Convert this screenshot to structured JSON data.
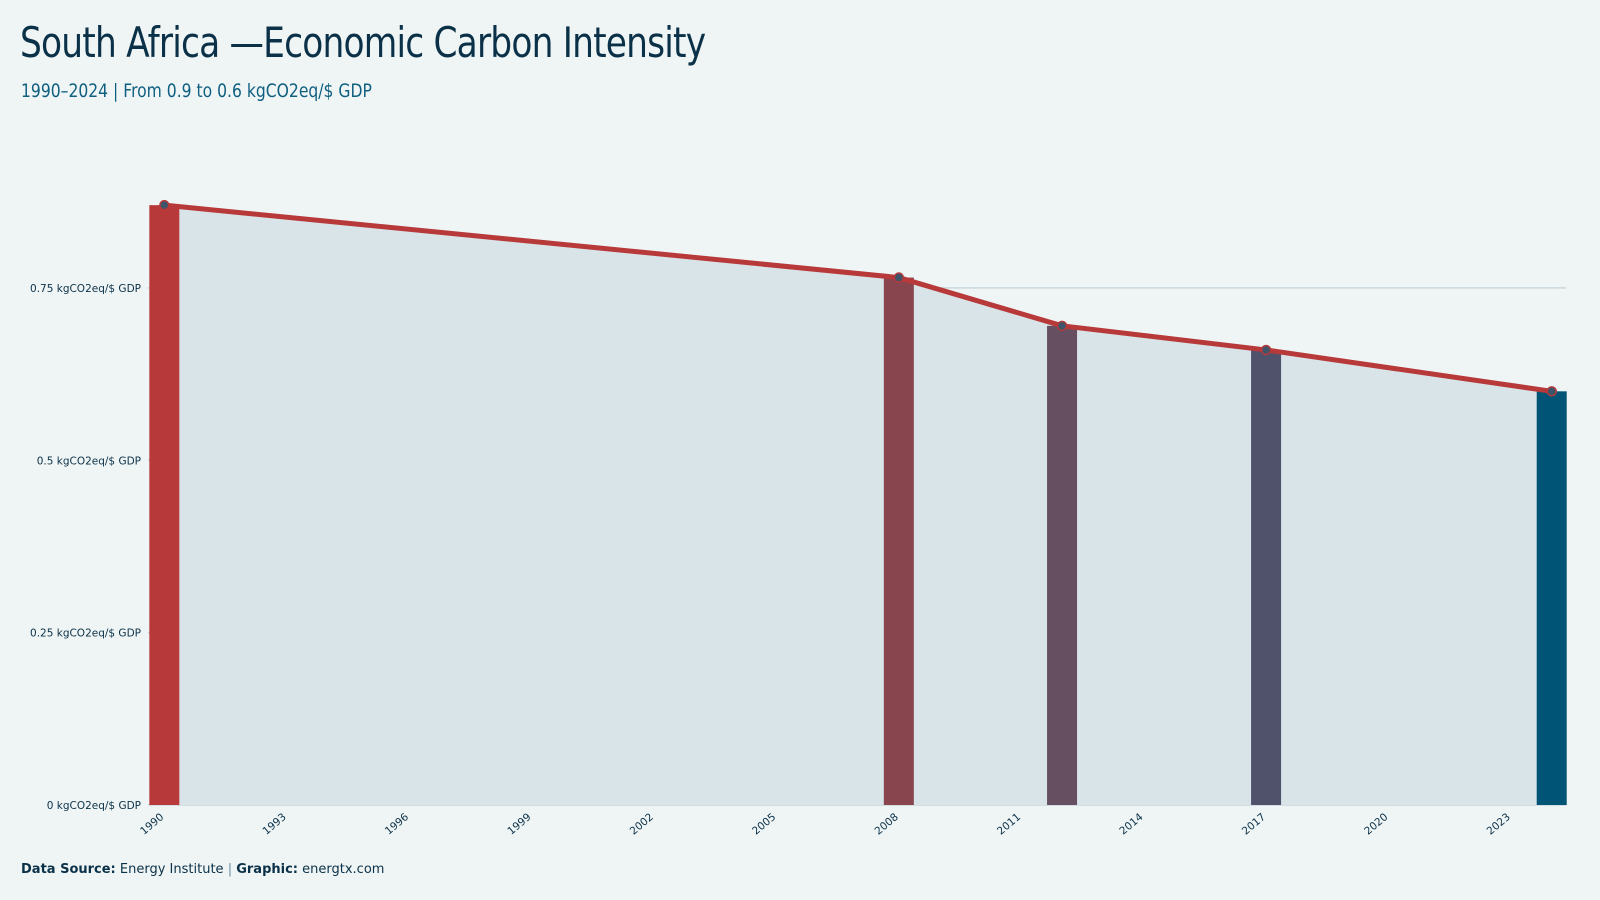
{
  "header": {
    "title": "South Africa —Economic Carbon Intensity",
    "subtitle": "1990–2024 | From 0.9 to 0.6 kgCO2eq/$ GDP"
  },
  "footer": {
    "source_label": "Data Source:",
    "source_value": "Energy Institute",
    "separator": "|",
    "graphic_label": "Graphic:",
    "graphic_value": "energtx.com"
  },
  "colors": {
    "background": "#eff5f5",
    "area_fill": "#d8e4e8",
    "line": "#b8393a",
    "grid": "#c9d7dc",
    "text": "#0b3148",
    "marker": "#3e5468"
  },
  "chart_data": {
    "type": "line",
    "x": [
      1990,
      2008,
      2012,
      2017,
      2024
    ],
    "values": [
      0.87,
      0.765,
      0.695,
      0.66,
      0.6
    ],
    "bars": [
      {
        "x": 1990,
        "value": 0.87,
        "color": "#b8393a"
      },
      {
        "x": 2008,
        "value": 0.765,
        "color": "#88454e"
      },
      {
        "x": 2012,
        "value": 0.695,
        "color": "#654f61"
      },
      {
        "x": 2017,
        "value": 0.66,
        "color": "#4f526a"
      },
      {
        "x": 2024,
        "value": 0.6,
        "color": "#005475"
      }
    ],
    "xlim": [
      1989.6,
      2024.35
    ],
    "ylim": [
      0,
      0.95
    ],
    "xticks": [
      1990,
      1993,
      1996,
      1999,
      2002,
      2005,
      2008,
      2011,
      2014,
      2017,
      2020,
      2023
    ],
    "yticks": [
      0,
      0.25,
      0.5,
      0.75
    ],
    "ytick_labels": [
      "0 kgCO2eq/$ GDP",
      "0.25 kgCO2eq/$ GDP",
      "0.5 kgCO2eq/$ GDP",
      "0.75 kgCO2eq/$ GDP"
    ],
    "grid": true,
    "legend": "none"
  }
}
